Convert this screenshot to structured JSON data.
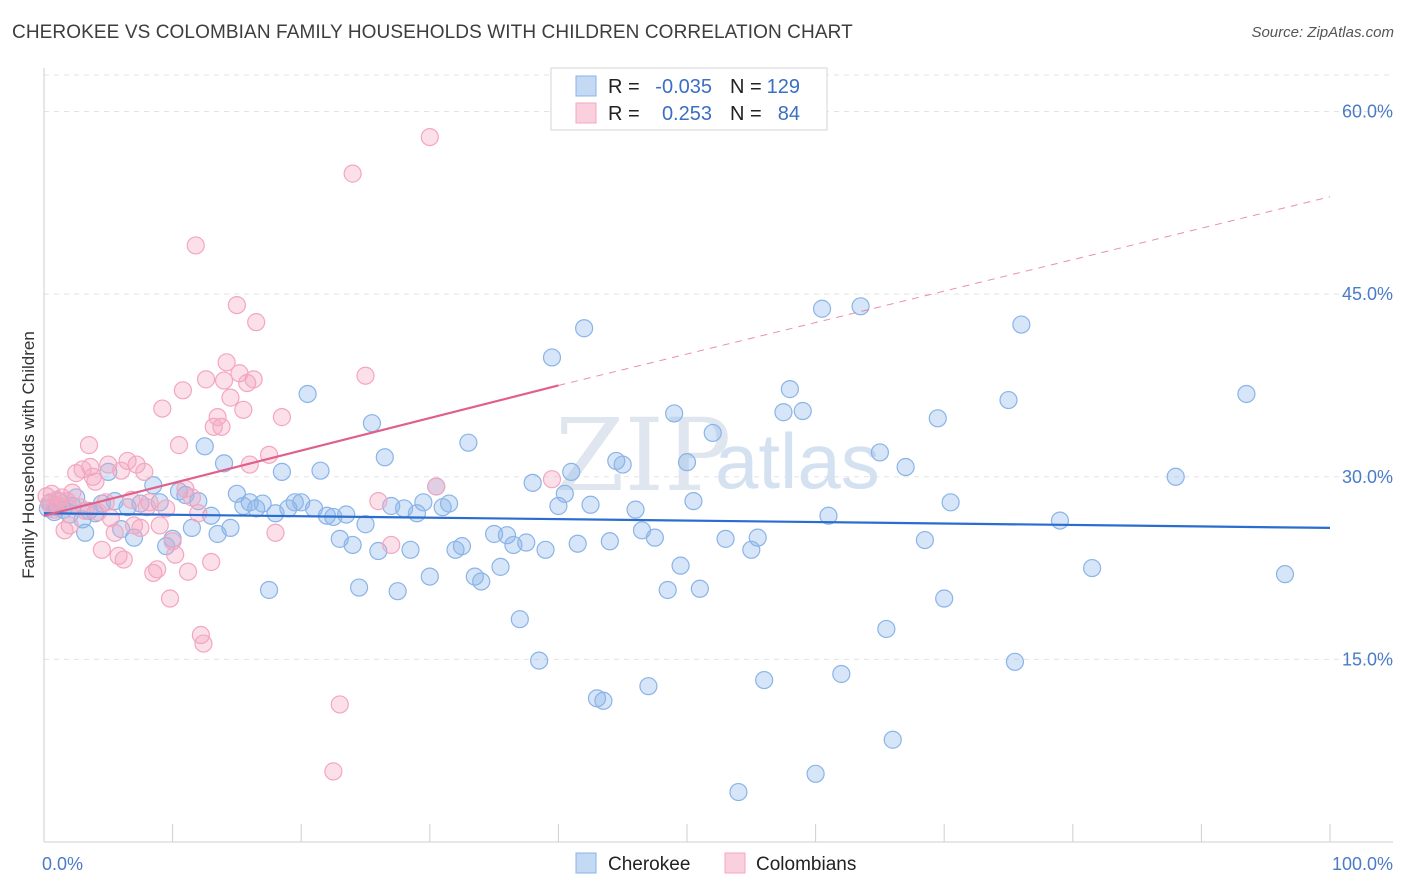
{
  "title": "CHEROKEE VS COLOMBIAN FAMILY HOUSEHOLDS WITH CHILDREN CORRELATION CHART",
  "source": "Source: ZipAtlas.com",
  "watermark": {
    "zip": "ZIP",
    "atlas": "atlas"
  },
  "chart_data": {
    "type": "scatter",
    "xlabel": "",
    "ylabel": "Family Households with Children",
    "xlim": [
      0,
      100
    ],
    "ylim": [
      0,
      63
    ],
    "y_ticks": [
      15,
      30,
      45,
      60
    ],
    "y_tick_labels": [
      "15.0%",
      "30.0%",
      "45.0%",
      "60.0%"
    ],
    "x_tick_labels": [
      "0.0%",
      "100.0%"
    ],
    "legend": [
      {
        "r_label": "R =",
        "r_value": "-0.035",
        "n_label": "N =",
        "n_value": "129"
      },
      {
        "r_label": "R =",
        "r_value": "0.253",
        "n_label": "N =",
        "n_value": "84"
      }
    ],
    "series": [
      {
        "name": "Cherokee",
        "color": "#8ab4e8",
        "line_color": "#2a6ccf",
        "trend": {
          "x0": 0,
          "y0": 27.0,
          "x1": 100,
          "y1": 25.8
        },
        "points": [
          [
            0.3,
            27.4
          ],
          [
            0.5,
            27.9
          ],
          [
            0.8,
            27.1
          ],
          [
            1.0,
            27.5
          ],
          [
            1.2,
            28.0
          ],
          [
            1.5,
            27.3
          ],
          [
            2.0,
            26.9
          ],
          [
            2.2,
            27.6
          ],
          [
            2.5,
            28.3
          ],
          [
            3.0,
            26.5
          ],
          [
            3.2,
            25.4
          ],
          [
            3.5,
            27.2
          ],
          [
            4.0,
            27.0
          ],
          [
            4.5,
            27.8
          ],
          [
            5.0,
            30.4
          ],
          [
            5.5,
            28.0
          ],
          [
            6.0,
            25.7
          ],
          [
            6.5,
            27.5
          ],
          [
            7.0,
            25.0
          ],
          [
            7.5,
            27.8
          ],
          [
            8.5,
            29.3
          ],
          [
            9.0,
            27.9
          ],
          [
            9.5,
            24.3
          ],
          [
            10.0,
            24.9
          ],
          [
            10.5,
            28.8
          ],
          [
            11.0,
            28.5
          ],
          [
            11.5,
            25.8
          ],
          [
            12.0,
            28.0
          ],
          [
            12.5,
            32.5
          ],
          [
            13.0,
            26.8
          ],
          [
            13.5,
            25.3
          ],
          [
            14.0,
            31.1
          ],
          [
            14.5,
            25.8
          ],
          [
            15.0,
            28.6
          ],
          [
            15.5,
            27.6
          ],
          [
            16.0,
            27.9
          ],
          [
            16.5,
            27.4
          ],
          [
            17.0,
            27.8
          ],
          [
            17.5,
            20.7
          ],
          [
            18.0,
            27.0
          ],
          [
            18.5,
            30.4
          ],
          [
            19.0,
            27.4
          ],
          [
            19.5,
            27.9
          ],
          [
            20.0,
            27.9
          ],
          [
            20.5,
            36.8
          ],
          [
            21.0,
            27.4
          ],
          [
            21.5,
            30.5
          ],
          [
            22.0,
            26.8
          ],
          [
            22.5,
            26.7
          ],
          [
            23.0,
            24.9
          ],
          [
            23.5,
            26.9
          ],
          [
            24.0,
            24.4
          ],
          [
            24.5,
            20.9
          ],
          [
            25.0,
            26.1
          ],
          [
            25.5,
            34.4
          ],
          [
            26.0,
            23.9
          ],
          [
            26.5,
            31.6
          ],
          [
            27.0,
            27.6
          ],
          [
            27.5,
            20.6
          ],
          [
            28.0,
            27.4
          ],
          [
            28.5,
            24.0
          ],
          [
            29.0,
            27.0
          ],
          [
            29.5,
            27.9
          ],
          [
            30.0,
            21.8
          ],
          [
            30.5,
            29.2
          ],
          [
            31.0,
            27.5
          ],
          [
            31.5,
            27.8
          ],
          [
            32.0,
            24.0
          ],
          [
            32.5,
            24.3
          ],
          [
            33.0,
            32.8
          ],
          [
            33.5,
            21.8
          ],
          [
            34.0,
            21.4
          ],
          [
            35.0,
            25.3
          ],
          [
            35.5,
            22.6
          ],
          [
            36.0,
            25.2
          ],
          [
            36.5,
            24.4
          ],
          [
            37.0,
            18.3
          ],
          [
            37.5,
            24.6
          ],
          [
            38.0,
            29.5
          ],
          [
            38.5,
            14.9
          ],
          [
            39.0,
            24.0
          ],
          [
            39.5,
            39.8
          ],
          [
            40.0,
            27.6
          ],
          [
            40.5,
            28.6
          ],
          [
            41.0,
            30.4
          ],
          [
            41.5,
            24.5
          ],
          [
            42.0,
            42.2
          ],
          [
            42.5,
            27.7
          ],
          [
            43.0,
            11.8
          ],
          [
            43.5,
            11.6
          ],
          [
            44.0,
            24.7
          ],
          [
            44.5,
            31.3
          ],
          [
            45.0,
            31.0
          ],
          [
            46.0,
            27.3
          ],
          [
            46.5,
            25.6
          ],
          [
            47.0,
            12.8
          ],
          [
            47.5,
            25.0
          ],
          [
            48.5,
            20.7
          ],
          [
            49.0,
            35.2
          ],
          [
            49.5,
            22.7
          ],
          [
            50.0,
            31.2
          ],
          [
            50.5,
            28.0
          ],
          [
            51.0,
            20.8
          ],
          [
            52.0,
            33.6
          ],
          [
            53.0,
            24.9
          ],
          [
            54.0,
            4.1
          ],
          [
            55.0,
            24.0
          ],
          [
            55.5,
            25.0
          ],
          [
            56.0,
            13.3
          ],
          [
            57.5,
            35.3
          ],
          [
            58.0,
            37.2
          ],
          [
            59.0,
            35.4
          ],
          [
            60.0,
            5.6
          ],
          [
            60.5,
            43.8
          ],
          [
            61.0,
            26.8
          ],
          [
            62.0,
            13.8
          ],
          [
            63.5,
            44.0
          ],
          [
            65.0,
            32.0
          ],
          [
            65.5,
            17.5
          ],
          [
            66.0,
            8.4
          ],
          [
            67.0,
            30.8
          ],
          [
            68.5,
            24.8
          ],
          [
            69.5,
            34.8
          ],
          [
            70.0,
            20.0
          ],
          [
            70.5,
            27.9
          ],
          [
            75.0,
            36.3
          ],
          [
            75.5,
            14.8
          ],
          [
            76.0,
            42.5
          ],
          [
            79.0,
            26.4
          ],
          [
            81.5,
            22.5
          ],
          [
            88.0,
            30.0
          ],
          [
            93.5,
            36.8
          ],
          [
            96.5,
            22.0
          ]
        ]
      },
      {
        "name": "Colombians",
        "color": "#f4a6c0",
        "line_color": "#e0608a",
        "trend": {
          "x0": 0,
          "y0": 26.8,
          "x1": 40,
          "y1": 37.5,
          "dash_x1": 100,
          "dash_y1": 53.0
        },
        "points": [
          [
            0.2,
            28.4
          ],
          [
            0.4,
            27.8
          ],
          [
            0.6,
            28.6
          ],
          [
            0.8,
            27.3
          ],
          [
            1.0,
            28.1
          ],
          [
            1.2,
            27.6
          ],
          [
            1.4,
            28.3
          ],
          [
            1.6,
            25.6
          ],
          [
            1.8,
            28.0
          ],
          [
            2.0,
            26.0
          ],
          [
            2.2,
            28.7
          ],
          [
            2.5,
            30.3
          ],
          [
            2.8,
            27.5
          ],
          [
            3.0,
            30.6
          ],
          [
            3.2,
            27.2
          ],
          [
            3.5,
            32.6
          ],
          [
            3.6,
            30.8
          ],
          [
            3.8,
            30.0
          ],
          [
            4.0,
            29.6
          ],
          [
            4.2,
            27.1
          ],
          [
            4.5,
            24.0
          ],
          [
            4.8,
            27.9
          ],
          [
            5.0,
            31.0
          ],
          [
            5.2,
            26.6
          ],
          [
            5.5,
            25.4
          ],
          [
            5.8,
            23.5
          ],
          [
            6.0,
            30.5
          ],
          [
            6.2,
            23.2
          ],
          [
            6.5,
            31.3
          ],
          [
            6.8,
            28.1
          ],
          [
            7.0,
            26.0
          ],
          [
            7.2,
            31.0
          ],
          [
            7.5,
            25.8
          ],
          [
            7.8,
            30.4
          ],
          [
            8.0,
            27.5
          ],
          [
            8.2,
            27.9
          ],
          [
            8.5,
            22.1
          ],
          [
            8.8,
            22.4
          ],
          [
            9.0,
            26.0
          ],
          [
            9.2,
            35.6
          ],
          [
            9.5,
            27.4
          ],
          [
            9.8,
            20.0
          ],
          [
            10.0,
            24.7
          ],
          [
            10.2,
            23.6
          ],
          [
            10.5,
            32.6
          ],
          [
            10.8,
            37.1
          ],
          [
            11.0,
            29.0
          ],
          [
            11.2,
            22.2
          ],
          [
            11.5,
            28.3
          ],
          [
            11.8,
            49.0
          ],
          [
            12.0,
            27.0
          ],
          [
            12.2,
            17.0
          ],
          [
            12.4,
            16.3
          ],
          [
            12.6,
            38.0
          ],
          [
            13.0,
            23.0
          ],
          [
            13.2,
            34.1
          ],
          [
            13.5,
            34.9
          ],
          [
            13.8,
            34.1
          ],
          [
            14.0,
            37.9
          ],
          [
            14.2,
            39.4
          ],
          [
            14.5,
            36.5
          ],
          [
            15.0,
            44.1
          ],
          [
            15.2,
            38.5
          ],
          [
            15.5,
            35.5
          ],
          [
            15.8,
            37.7
          ],
          [
            16.0,
            31.0
          ],
          [
            16.3,
            38.0
          ],
          [
            16.5,
            42.7
          ],
          [
            17.5,
            31.8
          ],
          [
            18.0,
            25.4
          ],
          [
            18.5,
            34.9
          ],
          [
            22.5,
            5.8
          ],
          [
            23.0,
            11.3
          ],
          [
            24.0,
            54.9
          ],
          [
            25.0,
            38.3
          ],
          [
            26.0,
            28.0
          ],
          [
            27.0,
            24.4
          ],
          [
            30.0,
            57.9
          ],
          [
            30.5,
            29.2
          ],
          [
            39.5,
            29.8
          ]
        ]
      }
    ]
  }
}
